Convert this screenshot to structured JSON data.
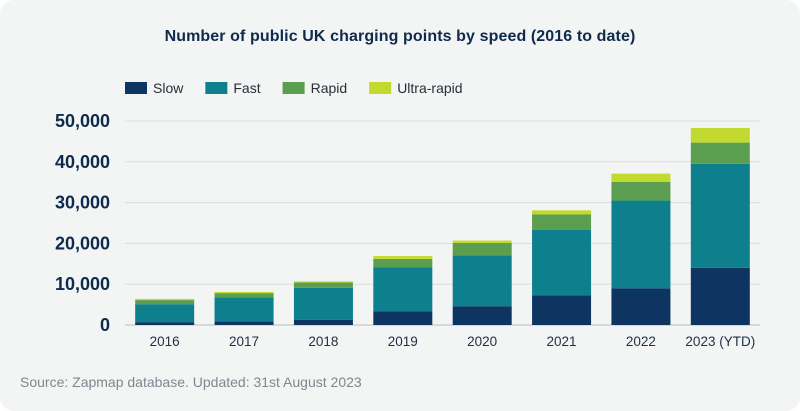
{
  "title": "Number of public UK charging points by speed (2016 to date)",
  "source": "Source: Zapmap database. Updated: 31st August 2023",
  "chart_data": {
    "type": "bar",
    "stacked": true,
    "categories": [
      "2016",
      "2017",
      "2018",
      "2019",
      "2020",
      "2021",
      "2022",
      "2023 (YTD)"
    ],
    "series": [
      {
        "name": "Slow",
        "color": "#0e3461",
        "values": [
          700,
          900,
          1300,
          3300,
          4600,
          7300,
          9000,
          14000
        ]
      },
      {
        "name": "Fast",
        "color": "#0e7f8c",
        "values": [
          4400,
          5900,
          7800,
          10800,
          12500,
          16000,
          21500,
          25500
        ]
      },
      {
        "name": "Rapid",
        "color": "#5b9e4f",
        "values": [
          1000,
          1000,
          1300,
          2100,
          3000,
          3800,
          4600,
          5200
        ]
      },
      {
        "name": "Ultra-rapid",
        "color": "#c2d930",
        "values": [
          300,
          300,
          300,
          700,
          600,
          1000,
          2000,
          3600
        ]
      }
    ],
    "ylim": [
      0,
      50000
    ],
    "yticks": [
      "0",
      "10,000",
      "20,000",
      "30,000",
      "40,000",
      "50,000"
    ],
    "ytick_values": [
      0,
      10000,
      20000,
      30000,
      40000,
      50000
    ],
    "grid": true,
    "legend_position": "top-left",
    "xlabel": "",
    "ylabel": ""
  }
}
